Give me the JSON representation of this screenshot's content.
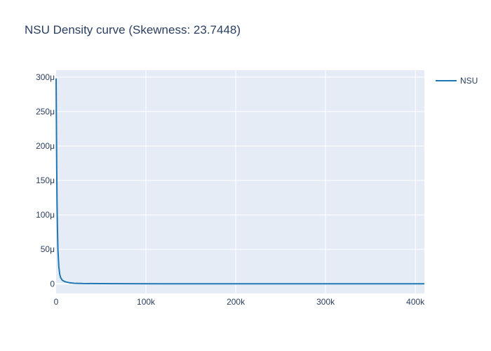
{
  "chart_data": {
    "type": "line",
    "title": "NSU Density curve (Skewness: 23.7448)",
    "xlabel": "",
    "ylabel": "",
    "xlim": [
      0,
      410000
    ],
    "ylim": [
      -14,
      310
    ],
    "x_ticks": [
      {
        "value": 0,
        "label": "0"
      },
      {
        "value": 100000,
        "label": "100k"
      },
      {
        "value": 200000,
        "label": "200k"
      },
      {
        "value": 300000,
        "label": "300k"
      },
      {
        "value": 400000,
        "label": "400k"
      }
    ],
    "y_unit_note": "values in micro-units (μ)",
    "y_ticks": [
      {
        "value": 0,
        "label": "0"
      },
      {
        "value": 50,
        "label": "50μ"
      },
      {
        "value": 100,
        "label": "100μ"
      },
      {
        "value": 150,
        "label": "150μ"
      },
      {
        "value": 200,
        "label": "200μ"
      },
      {
        "value": 250,
        "label": "250μ"
      },
      {
        "value": 300,
        "label": "300μ"
      }
    ],
    "grid": true,
    "legend_position": "top-right",
    "series": [
      {
        "name": "NSU",
        "color": "#1f77b4",
        "x": [
          0,
          300,
          600,
          1000,
          1500,
          2000,
          3000,
          4000,
          5000,
          7000,
          10000,
          15000,
          20000,
          30000,
          50000,
          80000,
          120000,
          200000,
          300000,
          410000
        ],
        "y": [
          298,
          240,
          180,
          120,
          80,
          50,
          25,
          14,
          9,
          5,
          3,
          1.5,
          0.8,
          0.4,
          0.2,
          0.1,
          0.05,
          0.02,
          0.01,
          0.0
        ]
      }
    ]
  }
}
